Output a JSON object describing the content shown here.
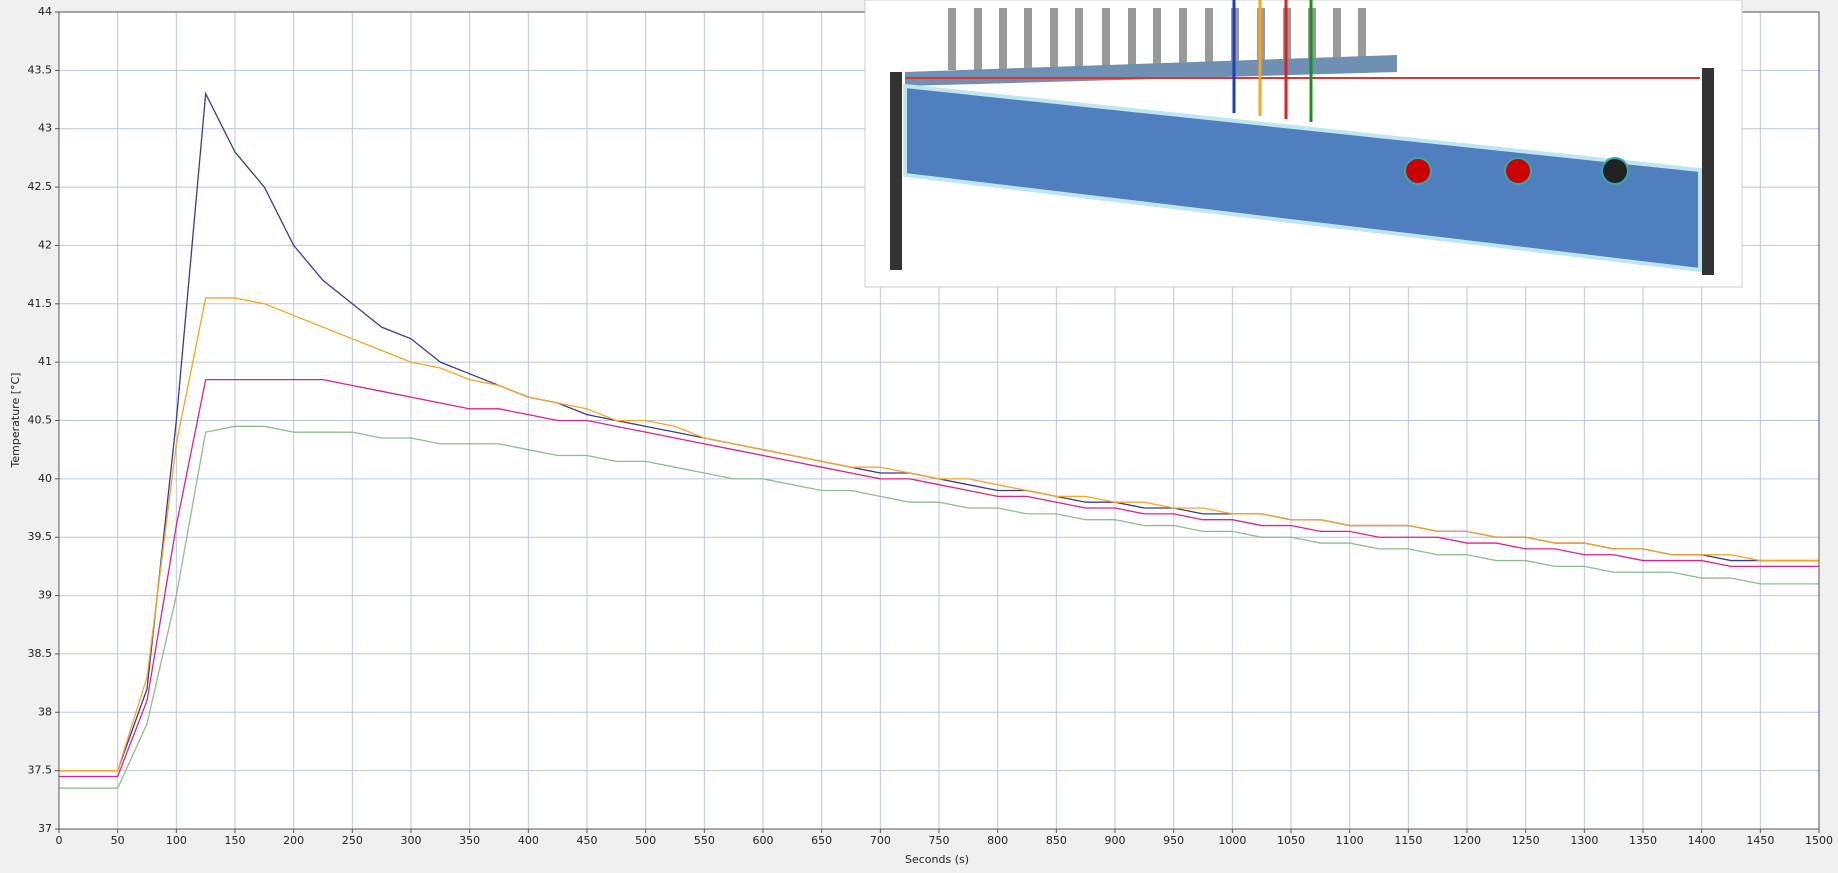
{
  "chart_data": {
    "type": "line",
    "x_label": "Seconds (s)",
    "y_label": "Temperature [°C]",
    "x": [
      0,
      25,
      50,
      75,
      100,
      125,
      150,
      175,
      200,
      225,
      250,
      275,
      300,
      325,
      350,
      375,
      400,
      425,
      450,
      475,
      500,
      525,
      550,
      575,
      600,
      625,
      650,
      675,
      700,
      725,
      750,
      775,
      800,
      825,
      850,
      875,
      900,
      925,
      950,
      975,
      1000,
      1025,
      1050,
      1075,
      1100,
      1125,
      1150,
      1175,
      1200,
      1225,
      1250,
      1275,
      1300,
      1325,
      1350,
      1375,
      1400,
      1425,
      1450,
      1475,
      1500
    ],
    "series": [
      {
        "color": "#3b3b8f",
        "values": [
          37.5,
          37.5,
          37.5,
          38.2,
          40.5,
          43.3,
          42.8,
          42.5,
          42.0,
          41.7,
          41.5,
          41.3,
          41.2,
          41.0,
          40.9,
          40.8,
          40.7,
          40.65,
          40.55,
          40.5,
          40.45,
          40.4,
          40.35,
          40.3,
          40.25,
          40.2,
          40.15,
          40.1,
          40.05,
          40.05,
          40.0,
          39.95,
          39.9,
          39.9,
          39.85,
          39.8,
          39.8,
          39.75,
          39.75,
          39.7,
          39.7,
          39.7,
          39.65,
          39.65,
          39.6,
          39.6,
          39.6,
          39.55,
          39.55,
          39.5,
          39.5,
          39.45,
          39.45,
          39.4,
          39.4,
          39.35,
          39.35,
          39.3,
          39.3,
          39.3,
          39.3
        ]
      },
      {
        "color": "#f5a623",
        "values": [
          37.5,
          37.5,
          37.5,
          38.3,
          40.3,
          41.55,
          41.55,
          41.5,
          41.4,
          41.3,
          41.2,
          41.1,
          41.0,
          40.95,
          40.85,
          40.8,
          40.7,
          40.65,
          40.6,
          40.5,
          40.5,
          40.45,
          40.35,
          40.3,
          40.25,
          40.2,
          40.15,
          40.1,
          40.1,
          40.05,
          40.0,
          40.0,
          39.95,
          39.9,
          39.85,
          39.85,
          39.8,
          39.8,
          39.75,
          39.75,
          39.7,
          39.7,
          39.65,
          39.65,
          39.6,
          39.6,
          39.6,
          39.55,
          39.55,
          39.5,
          39.5,
          39.45,
          39.45,
          39.4,
          39.4,
          39.35,
          39.35,
          39.35,
          39.3,
          39.3,
          39.3
        ]
      },
      {
        "color": "#e0218a",
        "values": [
          37.45,
          37.45,
          37.45,
          38.1,
          39.6,
          40.85,
          40.85,
          40.85,
          40.85,
          40.85,
          40.8,
          40.75,
          40.7,
          40.65,
          40.6,
          40.6,
          40.55,
          40.5,
          40.5,
          40.45,
          40.4,
          40.35,
          40.3,
          40.25,
          40.2,
          40.15,
          40.1,
          40.05,
          40.0,
          40.0,
          39.95,
          39.9,
          39.85,
          39.85,
          39.8,
          39.75,
          39.75,
          39.7,
          39.7,
          39.65,
          39.65,
          39.6,
          39.6,
          39.55,
          39.55,
          39.5,
          39.5,
          39.5,
          39.45,
          39.45,
          39.4,
          39.4,
          39.35,
          39.35,
          39.3,
          39.3,
          39.3,
          39.25,
          39.25,
          39.25,
          39.25
        ]
      },
      {
        "color": "#8fbc8f",
        "values": [
          37.35,
          37.35,
          37.35,
          37.9,
          39.0,
          40.4,
          40.45,
          40.45,
          40.4,
          40.4,
          40.4,
          40.35,
          40.35,
          40.3,
          40.3,
          40.3,
          40.25,
          40.2,
          40.2,
          40.15,
          40.15,
          40.1,
          40.05,
          40.0,
          40.0,
          39.95,
          39.9,
          39.9,
          39.85,
          39.8,
          39.8,
          39.75,
          39.75,
          39.7,
          39.7,
          39.65,
          39.65,
          39.6,
          39.6,
          39.55,
          39.55,
          39.5,
          39.5,
          39.45,
          39.45,
          39.4,
          39.4,
          39.35,
          39.35,
          39.3,
          39.3,
          39.25,
          39.25,
          39.2,
          39.2,
          39.2,
          39.15,
          39.15,
          39.1,
          39.1,
          39.1
        ]
      }
    ],
    "xlim": [
      0,
      1500
    ],
    "xticks": [
      0,
      50,
      100,
      150,
      200,
      250,
      300,
      350,
      400,
      450,
      500,
      550,
      600,
      650,
      700,
      750,
      800,
      850,
      900,
      950,
      1000,
      1050,
      1100,
      1150,
      1200,
      1250,
      1300,
      1350,
      1400,
      1450,
      1500
    ],
    "ylim": [
      37,
      44
    ],
    "yticks": [
      37,
      37.5,
      38,
      38.5,
      39,
      39.5,
      40,
      40.5,
      41,
      41.5,
      42,
      42.5,
      43,
      43.5,
      44
    ],
    "grid": true
  }
}
